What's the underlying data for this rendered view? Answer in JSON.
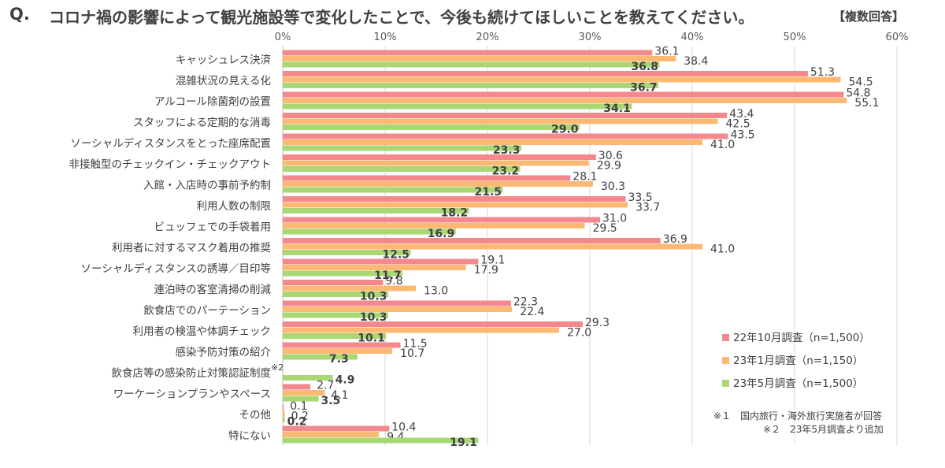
{
  "title": {
    "q": "Q.",
    "main": "コロナ禍の影響によって観光施設等で変化したことで、今後も続けてほしいことを教えてください。",
    "tag": "【複数回答】"
  },
  "notes": {
    "note1": "※１　国内旅行・海外旅行実施者が回答",
    "note2": "※２　23年5月調査より追加"
  },
  "chart_data": {
    "type": "bar",
    "orientation": "horizontal",
    "xlim": [
      0,
      60
    ],
    "xticks": [
      "0%",
      "10%",
      "20%",
      "30%",
      "40%",
      "50%",
      "60%"
    ],
    "grid": true,
    "legend_position": "right",
    "categories": [
      "キャッシュレス決済",
      "混雑状況の見える化",
      "アルコール除菌剤の設置",
      "スタッフによる定期的な消毒",
      "ソーシャルディスタンスをとった座席配置",
      "非接触型のチェックイン・チェックアウト",
      "入館・入店時の事前予約制",
      "利用人数の制限",
      "ビュッフェでの手袋着用",
      "利用者に対するマスク着用の推奨",
      "ソーシャルディスタンスの誘導／目印等",
      "連泊時の客室清掃の削減",
      "飲食店でのパーテーション",
      "利用者の検温や体調チェック",
      "感染予防対策の紹介",
      "飲食店等の感染防止対策認証制度",
      "ワーケーションプランやスペース",
      "その他",
      "特にない"
    ],
    "category_notes": [
      "",
      "",
      "",
      "",
      "",
      "",
      "",
      "",
      "",
      "",
      "",
      "",
      "",
      "",
      "",
      "※2",
      "",
      "",
      ""
    ],
    "series": [
      {
        "name": "22年10月調査（n=1,500）",
        "color": "#f4898d",
        "values": [
          36.1,
          51.3,
          54.8,
          43.4,
          43.5,
          30.6,
          28.1,
          33.5,
          31.0,
          36.9,
          19.1,
          9.8,
          22.3,
          29.3,
          11.5,
          null,
          2.7,
          0.1,
          10.4
        ],
        "labels": [
          "36.1",
          "51.3",
          "54.8",
          "43.4",
          "43.5",
          "30.6",
          "28.1",
          "33.5",
          "31.0",
          "36.9",
          "19.1",
          "9.8",
          "22.3",
          "29.3",
          "11.5",
          "",
          "2.7",
          "0.1",
          "10.4"
        ]
      },
      {
        "name": "23年1月調査（n=1,150）",
        "color": "#fbb974",
        "values": [
          38.4,
          54.5,
          55.1,
          42.5,
          41.0,
          29.9,
          30.3,
          33.7,
          29.5,
          41.0,
          17.9,
          13.0,
          22.4,
          27.0,
          10.7,
          null,
          4.1,
          0.2,
          9.4
        ],
        "labels": [
          "38.4",
          "54.5",
          "55.1",
          "42.5",
          "41.0",
          "29.9",
          "30.3",
          "33.7",
          "29.5",
          "41.0",
          "17.9",
          "13.0",
          "22.4",
          "27.0",
          "10.7",
          "",
          "4.1",
          "0.2",
          "9.4"
        ]
      },
      {
        "name": "23年5月調査（n=1,500）",
        "color": "#a9d774",
        "values": [
          36.8,
          36.7,
          34.1,
          29.0,
          23.3,
          23.2,
          21.5,
          18.2,
          16.9,
          12.5,
          11.7,
          10.3,
          10.3,
          10.1,
          7.3,
          4.9,
          3.5,
          0.2,
          19.1
        ],
        "labels": [
          "36.8",
          "36.7",
          "34.1",
          "29.0",
          "23.3",
          "23.2",
          "21.5",
          "18.2",
          "16.9",
          "12.5",
          "11.7",
          "10.3",
          "10.3",
          "10.1",
          "7.3",
          "4.9",
          "3.5",
          "0.2",
          "19.1"
        ]
      }
    ]
  }
}
